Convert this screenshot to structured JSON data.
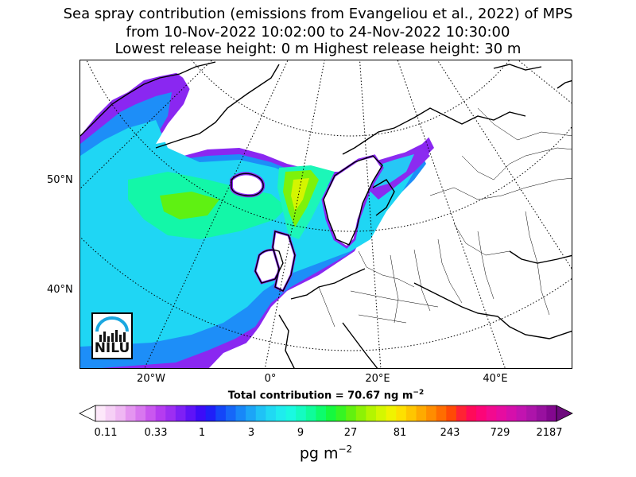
{
  "title": {
    "line1": "Sea spray contribution (emissions from Evangeliou et al., 2022) of MPS",
    "line2": "from 10-Nov-2022 10:02:00 to 24-Nov-2022 10:30:00",
    "line3": "Lowest release height: 0 m      Highest release height: 30 m"
  },
  "map": {
    "lat_labels": [
      "50°N",
      "40°N"
    ],
    "lon_labels": [
      "20°W",
      "0°",
      "20°E",
      "40°E"
    ],
    "total_label": "Total contribution = 70.67 ng m",
    "total_exponent": "−2"
  },
  "logo": {
    "text": "NILU",
    "colors": {
      "arc": "#1aa7e0",
      "bars": "#111111"
    }
  },
  "colorbar": {
    "ticks": [
      "0.11",
      "0.33",
      "1",
      "3",
      "9",
      "27",
      "81",
      "243",
      "729",
      "2187"
    ],
    "units": "pg m",
    "units_exponent": "−2",
    "colors": [
      "#fde8fa",
      "#f6d0f6",
      "#efb7f3",
      "#e495f0",
      "#d877ef",
      "#c957ef",
      "#b53cf0",
      "#9d2ef2",
      "#7e20f5",
      "#5e13f7",
      "#3c0cf8",
      "#1f1ff8",
      "#1446f8",
      "#1667f8",
      "#1887f8",
      "#1ca5f7",
      "#1fc2f6",
      "#20d9f3",
      "#1fecee",
      "#1af9e1",
      "#14fbc1",
      "#0ffc9a",
      "#0dfc6c",
      "#15f93e",
      "#36f523",
      "#62f10f",
      "#8df205",
      "#b4f500",
      "#d4f700",
      "#f0f300",
      "#fde000",
      "#fec600",
      "#feaa00",
      "#ff8d00",
      "#ff6d00",
      "#ff4a06",
      "#ff2334",
      "#ff0a59",
      "#fc0578",
      "#f20a8f",
      "#e60ca0",
      "#d50fab",
      "#c213b0",
      "#ad14aa",
      "#98109f",
      "#83078f"
    ]
  }
}
